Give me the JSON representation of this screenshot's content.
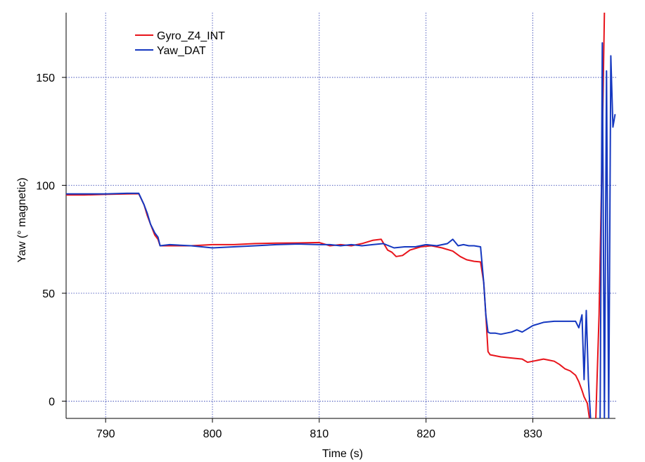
{
  "chart_data": {
    "type": "line",
    "title": "",
    "xlabel": "Time (s)",
    "ylabel": "Yaw (° magnetic)",
    "xlim": [
      786.3,
      837.8
    ],
    "ylim": [
      -8,
      180
    ],
    "xticks": [
      790,
      800,
      810,
      820,
      830
    ],
    "yticks": [
      0,
      50,
      100,
      150
    ],
    "grid": true,
    "legend_position": "top-left",
    "series": [
      {
        "name": "Gyro_Z4_INT",
        "color": "#e8141b",
        "x": [
          786.3,
          788,
          790,
          792,
          793.1,
          793.6,
          793.9,
          794.2,
          794.6,
          794.9,
          795.1,
          796,
          798,
          800,
          802,
          804,
          806,
          808,
          810,
          811,
          812,
          813,
          814,
          815,
          815.8,
          816.4,
          816.8,
          817.2,
          817.8,
          818.5,
          819.5,
          820.5,
          821.5,
          822.5,
          823.2,
          823.8,
          824.5,
          825.1,
          825.4,
          825.6,
          825.8,
          826.0,
          826.5,
          827,
          828,
          829,
          829.5,
          830,
          831,
          831.5,
          832,
          832.5,
          833,
          833.5,
          834,
          834.3,
          834.6,
          834.8,
          835.1,
          835.3
        ],
        "y": [
          95.5,
          95.5,
          95.8,
          96,
          96.1,
          91,
          86,
          82,
          77,
          75,
          72,
          72,
          72,
          72.5,
          72.5,
          73,
          73.2,
          73.3,
          73.5,
          72,
          72.5,
          72,
          73,
          74.5,
          75,
          70,
          69,
          67,
          67.5,
          70,
          71.5,
          72,
          71,
          69.5,
          67,
          65.5,
          64.8,
          64.5,
          55,
          40,
          23,
          21.5,
          21,
          20.5,
          20,
          19.5,
          18,
          18.5,
          19.5,
          19,
          18.5,
          17,
          15,
          14,
          12,
          9,
          5,
          2,
          -1,
          -8
        ]
      },
      {
        "name": "Gyro_Z4_INT",
        "color": "#e8141b",
        "x": [
          835.9,
          836.2,
          836.5,
          836.7
        ],
        "y": [
          -8,
          40,
          120,
          180
        ]
      },
      {
        "name": "Yaw_DAT",
        "color": "#1538c0",
        "x": [
          786.3,
          788,
          790,
          792,
          793.1,
          793.6,
          793.9,
          794.2,
          794.6,
          794.9,
          795.1,
          796,
          798,
          800,
          802,
          804,
          806,
          808,
          810,
          811,
          812,
          813,
          814,
          815,
          816,
          817,
          818,
          819,
          820,
          821,
          822,
          822.5,
          823,
          823.5,
          824,
          824.5,
          825.1,
          825.4,
          825.6,
          825.8,
          826.0,
          826.5,
          827,
          828,
          828.5,
          829,
          830,
          831,
          832,
          833,
          834,
          834.3,
          834.6,
          834.8,
          835.0,
          835.2,
          835.4
        ],
        "y": [
          96,
          96,
          96,
          96.3,
          96.3,
          91,
          87,
          82,
          78,
          76,
          72,
          72.5,
          72,
          71,
          71.5,
          72,
          72.5,
          72.8,
          72.5,
          72.5,
          72,
          72.5,
          72,
          72.5,
          73,
          71,
          71.5,
          71.5,
          72.5,
          72,
          73,
          75,
          72,
          72.5,
          72,
          72,
          71.5,
          55,
          40,
          32,
          31.5,
          31.5,
          31,
          32,
          33,
          32,
          35,
          36.5,
          37,
          37,
          37,
          34,
          40,
          10,
          42,
          10,
          -8
        ]
      },
      {
        "name": "Yaw_DAT",
        "color": "#1538c0",
        "x": [
          836.3,
          836.5,
          836.7,
          836.9,
          837.1,
          837.3,
          837.5,
          837.7
        ],
        "y": [
          -8,
          166,
          -8,
          153,
          -8,
          160,
          127,
          133
        ]
      }
    ]
  }
}
